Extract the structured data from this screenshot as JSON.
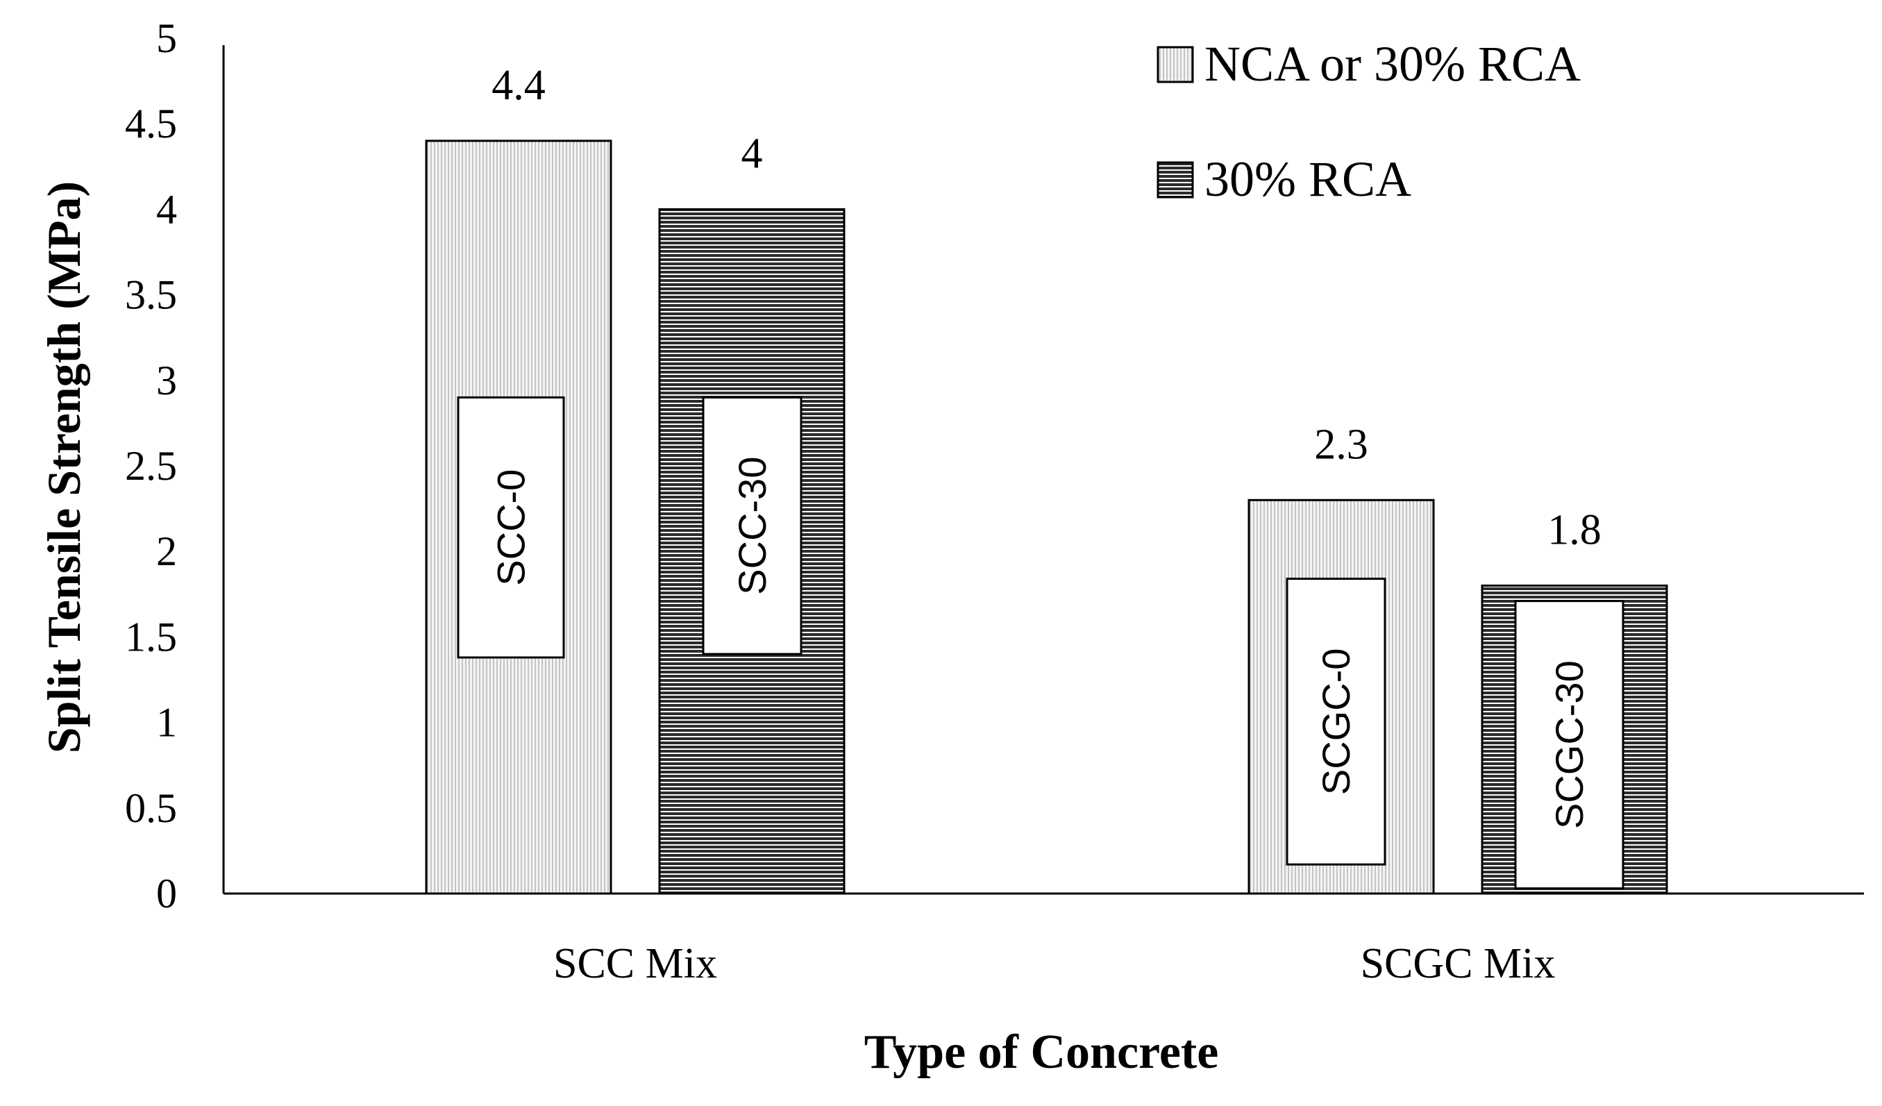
{
  "chart_data": {
    "type": "bar",
    "title": "",
    "xlabel": "Type of Concrete",
    "ylabel": "Split Tensile Strength (MPa)",
    "ylim": [
      0,
      5
    ],
    "yticks": [
      "0",
      "0.5",
      "1",
      "1.5",
      "2",
      "2.5",
      "3",
      "3.5",
      "4",
      "4.5",
      "5"
    ],
    "categories": [
      "SCC Mix",
      "SCGC Mix"
    ],
    "series": [
      {
        "name": "NCA or 30% RCA",
        "pattern": "vertical-lines",
        "values": [
          4.4,
          2.3
        ],
        "value_labels": [
          "4.4",
          "2.3"
        ],
        "bar_labels": [
          "SCC-0",
          "SCGC-0"
        ]
      },
      {
        "name": "30% RCA",
        "pattern": "horizontal-lines",
        "values": [
          4,
          1.8
        ],
        "value_labels": [
          "4",
          "1.8"
        ],
        "bar_labels": [
          "SCC-30",
          "SCGC-30"
        ]
      }
    ],
    "grid": false,
    "legend_position": "top-right",
    "colors": {
      "axis": "#000000",
      "bar_outline": "#000000",
      "light_fill": "#f2f2f2",
      "dark_fill": "#3a3a3a"
    }
  }
}
